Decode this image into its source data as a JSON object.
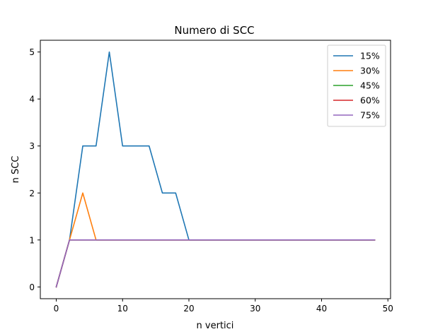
{
  "chart_data": {
    "type": "line",
    "title": "Numero di SCC",
    "xlabel": "n vertici",
    "ylabel": "n SCC",
    "xlim": [
      -2.4,
      50.4
    ],
    "ylim": [
      -0.25,
      5.25
    ],
    "xticks": [
      0,
      10,
      20,
      30,
      40,
      50
    ],
    "yticks": [
      0,
      1,
      2,
      3,
      4,
      5
    ],
    "grid": false,
    "legend_position": "top-right",
    "series": [
      {
        "name": "15%",
        "color": "#1f77b4",
        "x": [
          0,
          2,
          4,
          6,
          8,
          10,
          12,
          14,
          16,
          18,
          20,
          22,
          24,
          26,
          28,
          30,
          32,
          34,
          36,
          38,
          40,
          42,
          44,
          46,
          48
        ],
        "y": [
          0,
          1,
          3,
          3,
          5,
          3,
          3,
          3,
          2,
          2,
          1,
          1,
          1,
          1,
          1,
          1,
          1,
          1,
          1,
          1,
          1,
          1,
          1,
          1,
          1
        ]
      },
      {
        "name": "30%",
        "color": "#ff7f0e",
        "x": [
          0,
          2,
          4,
          6,
          8,
          10,
          12,
          14,
          16,
          18,
          20,
          22,
          24,
          26,
          28,
          30,
          32,
          34,
          36,
          38,
          40,
          42,
          44,
          46,
          48
        ],
        "y": [
          0,
          1,
          2,
          1,
          1,
          1,
          1,
          1,
          1,
          1,
          1,
          1,
          1,
          1,
          1,
          1,
          1,
          1,
          1,
          1,
          1,
          1,
          1,
          1,
          1
        ]
      },
      {
        "name": "45%",
        "color": "#2ca02c",
        "x": [
          0,
          2,
          4,
          6,
          8,
          10,
          12,
          14,
          16,
          18,
          20,
          22,
          24,
          26,
          28,
          30,
          32,
          34,
          36,
          38,
          40,
          42,
          44,
          46,
          48
        ],
        "y": [
          0,
          1,
          1,
          1,
          1,
          1,
          1,
          1,
          1,
          1,
          1,
          1,
          1,
          1,
          1,
          1,
          1,
          1,
          1,
          1,
          1,
          1,
          1,
          1,
          1
        ]
      },
      {
        "name": "60%",
        "color": "#d62728",
        "x": [
          0,
          2,
          4,
          6,
          8,
          10,
          12,
          14,
          16,
          18,
          20,
          22,
          24,
          26,
          28,
          30,
          32,
          34,
          36,
          38,
          40,
          42,
          44,
          46,
          48
        ],
        "y": [
          0,
          1,
          1,
          1,
          1,
          1,
          1,
          1,
          1,
          1,
          1,
          1,
          1,
          1,
          1,
          1,
          1,
          1,
          1,
          1,
          1,
          1,
          1,
          1,
          1
        ]
      },
      {
        "name": "75%",
        "color": "#9467bd",
        "x": [
          0,
          2,
          4,
          6,
          8,
          10,
          12,
          14,
          16,
          18,
          20,
          22,
          24,
          26,
          28,
          30,
          32,
          34,
          36,
          38,
          40,
          42,
          44,
          46,
          48
        ],
        "y": [
          0,
          1,
          1,
          1,
          1,
          1,
          1,
          1,
          1,
          1,
          1,
          1,
          1,
          1,
          1,
          1,
          1,
          1,
          1,
          1,
          1,
          1,
          1,
          1,
          1
        ]
      }
    ]
  }
}
